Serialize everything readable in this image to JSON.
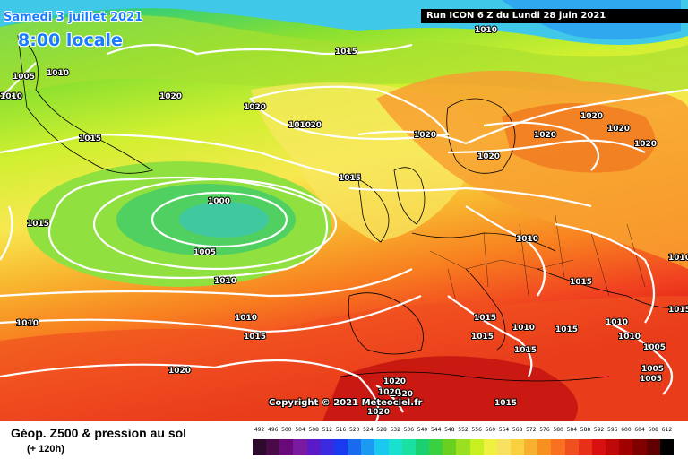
{
  "header": {
    "date": "Samedi 3 juillet 2021",
    "time": "8:00 locale",
    "run": "Run ICON 6 Z du Lundi 28 juin 2021"
  },
  "copyright": "Copyright © 2021 Meteociel.fr",
  "footer": {
    "title": "Géop. Z500 & pression au sol",
    "subtitle": "(+ 120h)"
  },
  "legend": {
    "values": [
      "492",
      "496",
      "500",
      "504",
      "508",
      "512",
      "516",
      "520",
      "524",
      "528",
      "532",
      "536",
      "540",
      "544",
      "548",
      "552",
      "556",
      "560",
      "564",
      "568",
      "572",
      "576",
      "580",
      "584",
      "588",
      "592",
      "596",
      "600",
      "604",
      "608",
      "612"
    ],
    "colors": [
      "#2b0a2b",
      "#4a0a4a",
      "#6a0a7a",
      "#7a1aa0",
      "#5a1ac8",
      "#3a2ae0",
      "#1a3af0",
      "#1a6af0",
      "#1a9af0",
      "#1ac8f0",
      "#1ae0d0",
      "#1ae0a0",
      "#1ad070",
      "#3ad040",
      "#6ad020",
      "#9ae020",
      "#c8f020",
      "#f0f040",
      "#f8e060",
      "#f8d040",
      "#f8b030",
      "#f89020",
      "#f87020",
      "#f05020",
      "#e83018",
      "#d81010",
      "#c00808",
      "#a00000",
      "#800000",
      "#600000",
      "#000000"
    ]
  },
  "isobars": [
    "1010",
    "1005",
    "1010",
    "1015",
    "1020",
    "1015",
    "1020",
    "1020",
    "1010",
    "1020",
    "1015",
    "1020",
    "1020",
    "1020",
    "1020",
    "1020",
    "1000",
    "1005",
    "1010",
    "1015",
    "1010",
    "1010",
    "1015",
    "1010",
    "1015",
    "1010",
    "1010",
    "1015",
    "1010",
    "1015",
    "1015",
    "1020",
    "1015",
    "1015",
    "1020",
    "1010",
    "1005",
    "1005",
    "1005",
    "1020",
    "1020",
    "1020",
    "1015",
    "1010"
  ]
}
